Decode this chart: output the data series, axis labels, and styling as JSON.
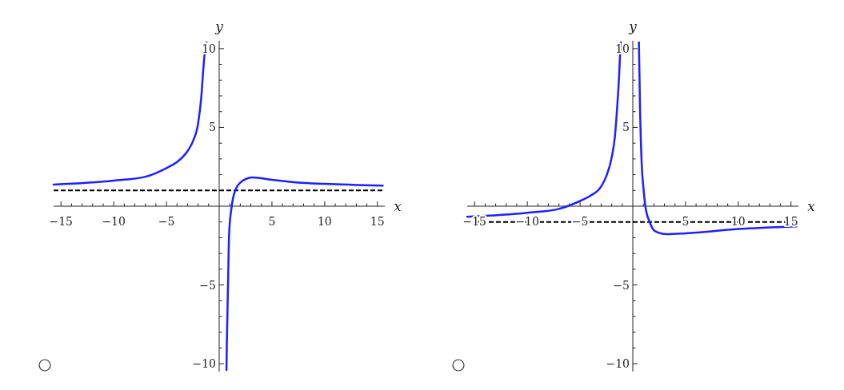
{
  "chart_data": [
    {
      "type": "line",
      "xlabel": "x",
      "ylabel": "y",
      "xlim": [
        -15.7,
        15.7
      ],
      "ylim": [
        -10.5,
        10.5
      ],
      "xticks": [
        -15,
        {
          "value": -14,
          "label": null
        },
        {
          "value": -13,
          "label": null
        },
        {
          "value": -12,
          "label": null
        },
        {
          "value": -11,
          "label": null
        },
        -10,
        {
          "value": -9,
          "label": null
        },
        {
          "value": -8,
          "label": null
        },
        {
          "value": -7,
          "label": null
        },
        {
          "value": -6,
          "label": null
        },
        -5,
        {
          "value": -4,
          "label": null
        },
        {
          "value": -3,
          "label": null
        },
        {
          "value": -2,
          "label": null
        },
        {
          "value": -1,
          "label": null
        },
        {
          "value": 1,
          "label": null
        },
        {
          "value": 2,
          "label": null
        },
        {
          "value": 3,
          "label": null
        },
        {
          "value": 4,
          "label": null
        },
        5,
        {
          "value": 6,
          "label": null
        },
        {
          "value": 7,
          "label": null
        },
        {
          "value": 8,
          "label": null
        },
        {
          "value": 9,
          "label": null
        },
        10,
        {
          "value": 11,
          "label": null
        },
        {
          "value": 12,
          "label": null
        },
        {
          "value": 13,
          "label": null
        },
        {
          "value": 14,
          "label": null
        },
        15
      ],
      "yticks": [
        -10,
        {
          "value": -9,
          "label": null
        },
        {
          "value": -8,
          "label": null
        },
        {
          "value": -7,
          "label": null
        },
        {
          "value": -6,
          "label": null
        },
        -5,
        {
          "value": -4,
          "label": null
        },
        {
          "value": -3,
          "label": null
        },
        {
          "value": -2,
          "label": null
        },
        {
          "value": -1,
          "label": null
        },
        {
          "value": 1,
          "label": null
        },
        {
          "value": 2,
          "label": null
        },
        {
          "value": 3,
          "label": null
        },
        {
          "value": 4,
          "label": null
        },
        5,
        {
          "value": 6,
          "label": null
        },
        {
          "value": 7,
          "label": null
        },
        {
          "value": 8,
          "label": null
        },
        {
          "value": 9,
          "label": null
        },
        10
      ],
      "series": [
        {
          "color": "#1f1fff",
          "x": [
            -15.7,
            -10,
            -7,
            -5,
            -4,
            -3,
            -2.5,
            -2,
            -1.7,
            -1.5,
            -1.3,
            -1.2,
            0,
            0.69,
            0.72,
            0.84,
            0.94,
            1.19,
            1.52,
            2.16,
            3.17,
            5,
            7.5,
            10,
            15.5
          ],
          "values": [
            1.37,
            1.62,
            1.87,
            2.42,
            2.8,
            3.5,
            4.1,
            5.25,
            6.9,
            8.75,
            10.2,
            10.4,
            null,
            -10.4,
            -8.9,
            -4.9,
            -1.75,
            0,
            1,
            1.58,
            1.82,
            1.67,
            1.5,
            1.42,
            1.3
          ]
        }
      ],
      "ref_lines": [
        {
          "axis": "y",
          "value": 1,
          "color": "#000000",
          "line_style": "dashed"
        }
      ]
    },
    {
      "type": "line",
      "xlabel": "x",
      "ylabel": "y",
      "xlim": [
        -15.7,
        15.7
      ],
      "ylim": [
        -10.5,
        10.5
      ],
      "xticks": [
        -15,
        {
          "value": -14,
          "label": null
        },
        {
          "value": -13,
          "label": null
        },
        {
          "value": -12,
          "label": null
        },
        {
          "value": -11,
          "label": null
        },
        -10,
        {
          "value": -9,
          "label": null
        },
        {
          "value": -8,
          "label": null
        },
        {
          "value": -7,
          "label": null
        },
        {
          "value": -6,
          "label": null
        },
        -5,
        {
          "value": -4,
          "label": null
        },
        {
          "value": -3,
          "label": null
        },
        {
          "value": -2,
          "label": null
        },
        {
          "value": -1,
          "label": null
        },
        {
          "value": 1,
          "label": null
        },
        {
          "value": 2,
          "label": null
        },
        {
          "value": 3,
          "label": null
        },
        {
          "value": 4,
          "label": null
        },
        5,
        {
          "value": 6,
          "label": null
        },
        {
          "value": 7,
          "label": null
        },
        {
          "value": 8,
          "label": null
        },
        {
          "value": 9,
          "label": null
        },
        10,
        {
          "value": 11,
          "label": null
        },
        {
          "value": 12,
          "label": null
        },
        {
          "value": 13,
          "label": null
        },
        {
          "value": 14,
          "label": null
        },
        15
      ],
      "yticks": [
        -10,
        {
          "value": -9,
          "label": null
        },
        {
          "value": -8,
          "label": null
        },
        {
          "value": -7,
          "label": null
        },
        {
          "value": -6,
          "label": null
        },
        -5,
        {
          "value": -4,
          "label": null
        },
        {
          "value": -3,
          "label": null
        },
        {
          "value": -2,
          "label": null
        },
        {
          "value": -1,
          "label": null
        },
        {
          "value": 1,
          "label": null
        },
        {
          "value": 2,
          "label": null
        },
        {
          "value": 3,
          "label": null
        },
        {
          "value": 4,
          "label": null
        },
        5,
        {
          "value": 6,
          "label": null
        },
        {
          "value": 7,
          "label": null
        },
        {
          "value": 8,
          "label": null
        },
        {
          "value": 9,
          "label": null
        },
        10
      ],
      "series": [
        {
          "color": "#1f1fff",
          "x": [
            -15.7,
            -10,
            -7,
            -6.2,
            -5,
            -4,
            -3,
            -2.5,
            -2,
            -1.7,
            -1.5,
            -1.3,
            -1.15,
            -0.3,
            0.58,
            0.69,
            0.84,
            1.02,
            1.19,
            1.6,
            2.1,
            3.2,
            5,
            10,
            15.5
          ],
          "values": [
            -0.67,
            -0.42,
            -0.17,
            0,
            0.33,
            0.67,
            1.25,
            1.92,
            3.1,
            4.4,
            6.1,
            8.25,
            10.4,
            null,
            10.4,
            6.1,
            2.75,
            1.08,
            0,
            -1,
            -1.58,
            -1.78,
            -1.72,
            -1.45,
            -1.28
          ]
        }
      ],
      "ref_lines": [
        {
          "axis": "y",
          "value": -1,
          "color": "#000000",
          "line_style": "dashed"
        }
      ]
    }
  ]
}
